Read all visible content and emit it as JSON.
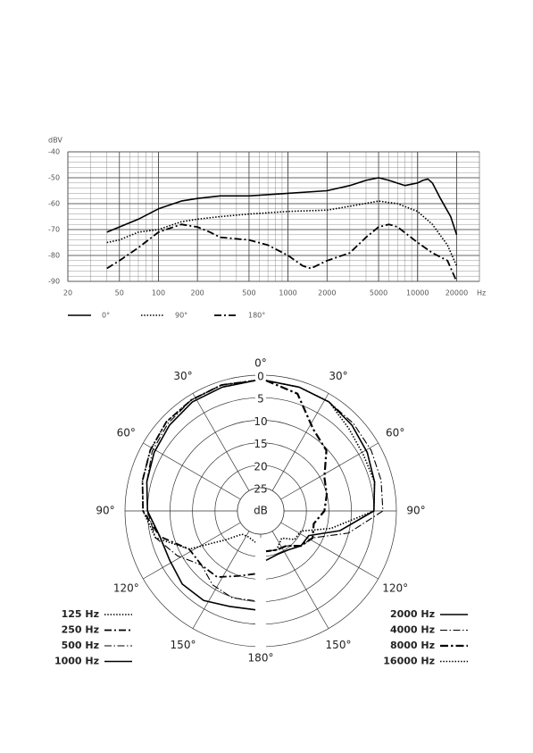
{
  "chart_data": [
    {
      "type": "line",
      "y_label": "dBV",
      "x_label": "Hz",
      "log_x": true,
      "grid": true,
      "minor_grid": true,
      "xlim": [
        20,
        30000
      ],
      "xticks": [
        20,
        50,
        100,
        200,
        500,
        1000,
        2000,
        5000,
        10000,
        20000
      ],
      "ylim": [
        -90,
        -40
      ],
      "yticks": [
        -90,
        -80,
        -70,
        -60,
        -50,
        -40
      ],
      "series": [
        {
          "name": "0°",
          "color": "#000000",
          "dash": "solid",
          "x": [
            40,
            50,
            70,
            100,
            150,
            200,
            300,
            500,
            1000,
            2000,
            3000,
            4000,
            5000,
            6000,
            8000,
            10000,
            11000,
            12000,
            13000,
            15000,
            18000,
            20000
          ],
          "values": [
            -71,
            -69,
            -66,
            -62,
            -59,
            -58,
            -57,
            -57,
            -56,
            -55,
            -53,
            -51,
            -50,
            -51,
            -53,
            -52,
            -51,
            -50.5,
            -52,
            -58,
            -65,
            -72
          ]
        },
        {
          "name": "90°",
          "color": "#000000",
          "dash": "dotted",
          "x": [
            40,
            50,
            70,
            100,
            150,
            200,
            300,
            500,
            1000,
            2000,
            3000,
            5000,
            7000,
            10000,
            13000,
            17000,
            20000
          ],
          "values": [
            -75,
            -74,
            -71,
            -70,
            -67,
            -66,
            -65,
            -64,
            -63,
            -62.5,
            -61,
            -59,
            -60,
            -63,
            -68,
            -76,
            -84
          ]
        },
        {
          "name": "180°",
          "color": "#000000",
          "dash": "dash-dot",
          "x": [
            40,
            50,
            70,
            100,
            150,
            200,
            250,
            300,
            500,
            700,
            1000,
            1300,
            1500,
            2000,
            3000,
            4000,
            5000,
            6000,
            7000,
            10000,
            13000,
            17000,
            20000
          ],
          "values": [
            -85,
            -82,
            -77,
            -71,
            -68,
            -69,
            -71,
            -73,
            -74,
            -76,
            -80,
            -84,
            -85,
            -82,
            -79,
            -73,
            -69,
            -68,
            -69,
            -75,
            -79,
            -82,
            -90
          ]
        }
      ]
    },
    {
      "type": "polar",
      "center_label": "dB",
      "rlim": [
        0,
        25
      ],
      "rticks": [
        0,
        5,
        10,
        15,
        20,
        25
      ],
      "angle_ticks": [
        {
          "value": 0,
          "label": "0°"
        },
        {
          "value": 30,
          "label": "30°"
        },
        {
          "value": 60,
          "label": "60°"
        },
        {
          "value": 90,
          "label": "90°"
        },
        {
          "value": 120,
          "label": "120°"
        },
        {
          "value": 150,
          "label": "150°"
        },
        {
          "value": 180,
          "label": "180°"
        }
      ],
      "angles": [
        0,
        15,
        30,
        45,
        60,
        75,
        90,
        105,
        120,
        135,
        150,
        165,
        180
      ],
      "series": [
        {
          "name": "125 Hz",
          "side": "left",
          "color": "#000000",
          "dash": "dotted",
          "values": [
            0,
            0,
            0.5,
            1,
            2,
            3,
            4,
            6,
            12,
            20,
            23,
            23,
            22
          ]
        },
        {
          "name": "250 Hz",
          "side": "left",
          "color": "#000000",
          "dash": "dash-dot",
          "values": [
            0,
            0,
            0.5,
            1,
            2,
            3,
            4,
            7,
            12,
            12,
            12,
            14,
            15
          ]
        },
        {
          "name": "500 Hz",
          "side": "left",
          "color": "#000000",
          "dash": "dash-dot-thin",
          "values": [
            0,
            0,
            0.5,
            1.5,
            2.5,
            4,
            5,
            6,
            9,
            12,
            10,
            9,
            9
          ]
        },
        {
          "name": "1000 Hz",
          "side": "left",
          "color": "#000000",
          "dash": "solid",
          "values": [
            0,
            0.5,
            1,
            2,
            3,
            4,
            5,
            7,
            7,
            6,
            6,
            7,
            7
          ]
        },
        {
          "name": "2000 Hz",
          "side": "right",
          "color": "#000000",
          "dash": "solid",
          "values": [
            0,
            0.5,
            1,
            2,
            3,
            4,
            5,
            12,
            18,
            18,
            19,
            19,
            18
          ]
        },
        {
          "name": "4000 Hz",
          "side": "right",
          "color": "#000000",
          "dash": "dash-dot-thin",
          "values": [
            0,
            0.5,
            1,
            1.5,
            2,
            2.5,
            3,
            10,
            17,
            18,
            20,
            20,
            20
          ]
        },
        {
          "name": "8000 Hz",
          "side": "right",
          "color": "#000000",
          "dash": "dash-dot-bold",
          "values": [
            0,
            2,
            8,
            10,
            14,
            15,
            16,
            18,
            17,
            18,
            20,
            20,
            20
          ]
        },
        {
          "name": "16000 Hz",
          "side": "right",
          "color": "#000000",
          "dash": "dotted",
          "values": [
            0,
            0.5,
            1,
            3,
            4,
            4,
            5,
            14,
            20,
            20,
            22,
            20,
            20
          ]
        }
      ]
    }
  ]
}
